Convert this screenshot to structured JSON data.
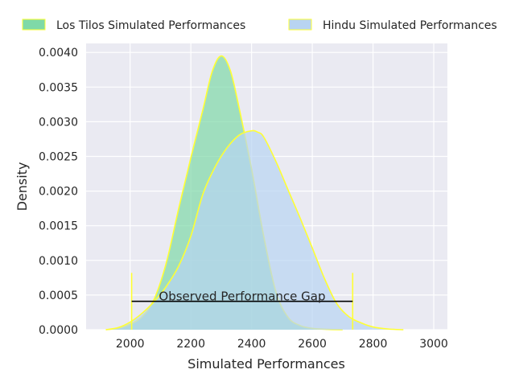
{
  "chart_data": {
    "type": "area",
    "title": "",
    "xlabel": "Simulated Performances",
    "ylabel": "Density",
    "xlim": [
      1855,
      3045
    ],
    "ylim": [
      0,
      0.00413
    ],
    "x_ticks": [
      2000,
      2200,
      2400,
      2600,
      2800,
      3000
    ],
    "y_ticks": [
      0.0,
      0.0005,
      0.001,
      0.0015,
      0.002,
      0.0025,
      0.003,
      0.0035,
      0.004
    ],
    "x_tick_labels": [
      "2000",
      "2200",
      "2400",
      "2600",
      "2800",
      "3000"
    ],
    "y_tick_labels": [
      "0.0000",
      "0.0005",
      "0.0010",
      "0.0015",
      "0.0020",
      "0.0025",
      "0.0030",
      "0.0035",
      "0.0040"
    ],
    "grid": true,
    "legend_position": "top, outside",
    "outline_color": "#ffff33",
    "series": [
      {
        "name": "Los Tilos Simulated Performances",
        "fill": "#7fd9a8",
        "x": [
          1920,
          1960,
          2000,
          2040,
          2080,
          2120,
          2160,
          2200,
          2240,
          2270,
          2300,
          2330,
          2360,
          2400,
          2440,
          2480,
          2520,
          2560,
          2600,
          2650,
          2700
        ],
        "y": [
          0,
          2e-05,
          8e-05,
          0.00019,
          0.00045,
          0.00098,
          0.00175,
          0.00248,
          0.00318,
          0.00372,
          0.00395,
          0.00374,
          0.00318,
          0.00232,
          0.00135,
          0.00055,
          0.00018,
          6e-05,
          2e-05,
          5e-06,
          0
        ]
      },
      {
        "name": "Hindu Simulated Performances",
        "fill": "#b8d4f2",
        "x": [
          1920,
          1960,
          2000,
          2040,
          2080,
          2120,
          2160,
          2200,
          2240,
          2280,
          2320,
          2360,
          2400,
          2420,
          2440,
          2480,
          2520,
          2560,
          2600,
          2640,
          2680,
          2720,
          2760,
          2800,
          2850,
          2900
        ],
        "y": [
          0,
          3e-05,
          0.00011,
          0.00024,
          0.00041,
          0.00063,
          0.00092,
          0.00135,
          0.00196,
          0.00235,
          0.00263,
          0.00281,
          0.00287,
          0.00285,
          0.00278,
          0.00243,
          0.00202,
          0.00161,
          0.00118,
          0.00074,
          0.00038,
          0.00019,
          0.0001,
          4e-05,
          1e-05,
          0
        ]
      }
    ],
    "annotation": {
      "text": "Observed Performance Gap",
      "x1": 2005,
      "x2": 2733,
      "y": 0.00041,
      "cap_top": 0.00082
    }
  }
}
